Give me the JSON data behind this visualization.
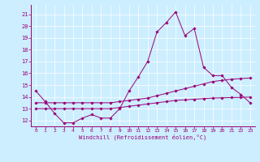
{
  "xlabel": "Windchill (Refroidissement éolien,°C)",
  "background_color": "#cceeff",
  "line_color": "#990077",
  "xlim": [
    -0.5,
    23.5
  ],
  "ylim": [
    11.5,
    21.8
  ],
  "yticks": [
    12,
    13,
    14,
    15,
    16,
    17,
    18,
    19,
    20,
    21
  ],
  "xticks": [
    0,
    1,
    2,
    3,
    4,
    5,
    6,
    7,
    8,
    9,
    10,
    11,
    12,
    13,
    14,
    15,
    16,
    17,
    18,
    19,
    20,
    21,
    22,
    23
  ],
  "series": [
    {
      "x": [
        0,
        1,
        2,
        3,
        4,
        5,
        6,
        7,
        8,
        9,
        10,
        11,
        12,
        13,
        14,
        15,
        16,
        17,
        18,
        19,
        20,
        21,
        22,
        23
      ],
      "y": [
        14.5,
        13.6,
        12.6,
        11.8,
        11.8,
        12.2,
        12.5,
        12.2,
        12.2,
        13.0,
        14.5,
        15.7,
        17.0,
        19.5,
        20.3,
        21.2,
        19.2,
        19.8,
        16.5,
        15.8,
        15.8,
        14.8,
        14.2,
        13.5
      ]
    },
    {
      "x": [
        0,
        1,
        2,
        3,
        4,
        5,
        6,
        7,
        8,
        9,
        10,
        11,
        12,
        13,
        14,
        15,
        16,
        17,
        18,
        19,
        20,
        21,
        22,
        23
      ],
      "y": [
        13.5,
        13.5,
        13.5,
        13.5,
        13.5,
        13.5,
        13.5,
        13.5,
        13.5,
        13.6,
        13.7,
        13.8,
        13.9,
        14.1,
        14.3,
        14.5,
        14.7,
        14.9,
        15.1,
        15.3,
        15.4,
        15.5,
        15.55,
        15.6
      ]
    },
    {
      "x": [
        0,
        1,
        2,
        3,
        4,
        5,
        6,
        7,
        8,
        9,
        10,
        11,
        12,
        13,
        14,
        15,
        16,
        17,
        18,
        19,
        20,
        21,
        22,
        23
      ],
      "y": [
        13.0,
        13.0,
        13.0,
        13.0,
        13.0,
        13.0,
        13.0,
        13.0,
        13.0,
        13.1,
        13.2,
        13.3,
        13.4,
        13.5,
        13.6,
        13.7,
        13.75,
        13.8,
        13.85,
        13.9,
        13.92,
        13.94,
        13.96,
        13.98
      ]
    }
  ]
}
